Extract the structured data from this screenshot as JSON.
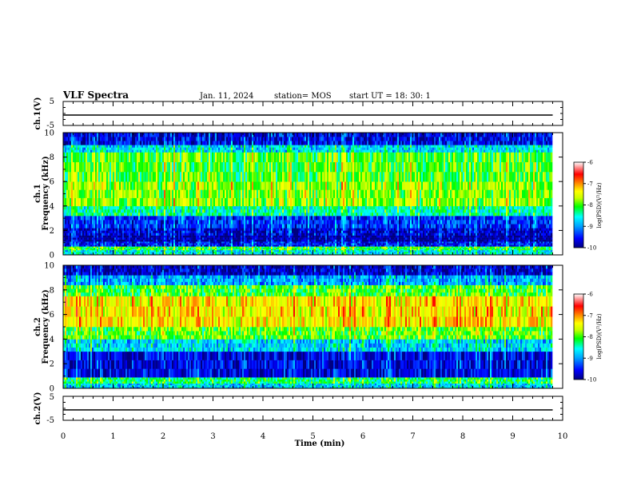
{
  "header": {
    "title": "VLF Spectra",
    "date": "Jan. 11, 2024",
    "station": "station= MOS",
    "start": "start UT =   18: 30: 1"
  },
  "colors": {
    "scale": [
      "#00007f",
      "#0000ff",
      "#00a0ff",
      "#00ffff",
      "#00ff00",
      "#c8ff00",
      "#ffff00",
      "#ff8000",
      "#ff0000",
      "#ffffff"
    ]
  },
  "chart_data": [
    {
      "type": "line",
      "panel": "ch1-voltage",
      "ylabel": "ch.1(V)",
      "ylim": [
        -5,
        5
      ],
      "yticks": [
        "5",
        "-5"
      ],
      "series": [
        {
          "values_description_free": true,
          "x": [
            0,
            9.8
          ],
          "y": [
            0,
            0
          ]
        }
      ]
    },
    {
      "type": "heatmap",
      "panel": "ch1-spectrogram",
      "ylabel": "ch.1\nFrequency (kHz)",
      "ylim": [
        0,
        10
      ],
      "yticks": [
        "0",
        "2",
        "4",
        "6",
        "8",
        "10"
      ],
      "xlim": [
        0,
        10
      ],
      "x_extent": [
        0,
        9.8
      ],
      "bands": [
        {
          "from": 0,
          "to": 0.4,
          "level": -8.5
        },
        {
          "from": 0.4,
          "to": 0.7,
          "level": -8.0
        },
        {
          "from": 0.7,
          "to": 1.1,
          "level": -9.4
        },
        {
          "from": 1.1,
          "to": 1.6,
          "level": -9.8
        },
        {
          "from": 1.6,
          "to": 2.2,
          "level": -9.6
        },
        {
          "from": 2.2,
          "to": 3.2,
          "level": -9.3
        },
        {
          "from": 3.2,
          "to": 4.0,
          "level": -8.3
        },
        {
          "from": 4.0,
          "to": 6.0,
          "level": -7.7
        },
        {
          "from": 6.0,
          "to": 8.4,
          "level": -7.9
        },
        {
          "from": 8.4,
          "to": 9.0,
          "level": -8.6
        },
        {
          "from": 9.0,
          "to": 10,
          "level": -9.5
        }
      ],
      "colorbar": {
        "label": "log(PSD)(V²/Hz)",
        "ticks": [
          "-6",
          "-7",
          "-8",
          "-9",
          "-10"
        ],
        "range": [
          -10,
          -6
        ]
      }
    },
    {
      "type": "heatmap",
      "panel": "ch2-spectrogram",
      "ylabel": "ch.2\nFrequency (kHz)",
      "ylim": [
        0,
        10
      ],
      "yticks": [
        "0",
        "2",
        "4",
        "6",
        "8",
        "10"
      ],
      "xlim": [
        0,
        10
      ],
      "x_extent": [
        0,
        9.8
      ],
      "bands": [
        {
          "from": 0,
          "to": 0.4,
          "level": -8.6
        },
        {
          "from": 0.4,
          "to": 0.9,
          "level": -8.1
        },
        {
          "from": 0.9,
          "to": 3.0,
          "level": -9.5
        },
        {
          "from": 3.0,
          "to": 4.0,
          "level": -8.6
        },
        {
          "from": 4.0,
          "to": 5.0,
          "level": -7.8
        },
        {
          "from": 5.0,
          "to": 7.5,
          "level": -7.2
        },
        {
          "from": 7.5,
          "to": 8.4,
          "level": -7.9
        },
        {
          "from": 8.4,
          "to": 9.2,
          "level": -8.8
        },
        {
          "from": 9.2,
          "to": 10,
          "level": -9.6
        }
      ],
      "colorbar": {
        "label": "log(PSD)(V²/Hz)",
        "ticks": [
          "-6",
          "-7",
          "-8",
          "-9",
          "-10"
        ],
        "range": [
          -10,
          -6
        ]
      }
    },
    {
      "type": "line",
      "panel": "ch2-voltage",
      "ylabel": "ch.2(V)",
      "ylim": [
        -5,
        5
      ],
      "yticks": [
        "5",
        "-5"
      ],
      "series": [
        {
          "x": [
            0,
            9.8
          ],
          "y": [
            0,
            0
          ]
        }
      ]
    }
  ],
  "xaxis": {
    "label": "Time (min)",
    "ticks": [
      "0",
      "1",
      "2",
      "3",
      "4",
      "5",
      "6",
      "7",
      "8",
      "9",
      "10"
    ],
    "xlim": [
      0,
      10
    ]
  }
}
